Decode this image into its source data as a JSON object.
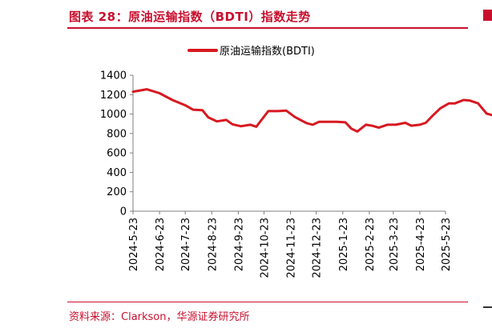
{
  "figure": {
    "title": "图表 28：原油运输指数（BDTI）指数走势",
    "source": "资料来源：Clarkson，华源证券研究所"
  },
  "colors": {
    "accent": "#c8102e",
    "series": "#d71920",
    "axis": "#7f7f7f"
  },
  "chart_data": {
    "type": "line",
    "title": "",
    "xlabel": "",
    "ylabel": "",
    "ylim": [
      0,
      1400
    ],
    "yticks": [
      0,
      200,
      400,
      600,
      800,
      1000,
      1200,
      1400
    ],
    "xtick_labels": [
      "2024-5-23",
      "2024-6-23",
      "2024-7-23",
      "2024-8-23",
      "2024-9-23",
      "2024-10-23",
      "2024-11-23",
      "2024-12-23",
      "2025-1-23",
      "2025-2-23",
      "2025-3-23",
      "2025-4-23",
      "2025-5-23"
    ],
    "legend_position": "top-center",
    "grid": false,
    "series": [
      {
        "name": "原油运输指数(BDTI)",
        "points": [
          [
            "2024-5-23",
            1230
          ],
          [
            "2024-6-8",
            1255
          ],
          [
            "2024-6-23",
            1215
          ],
          [
            "2024-7-8",
            1145
          ],
          [
            "2024-7-23",
            1090
          ],
          [
            "2024-8-1",
            1045
          ],
          [
            "2024-8-12",
            1040
          ],
          [
            "2024-8-19",
            965
          ],
          [
            "2024-8-29",
            925
          ],
          [
            "2024-9-9",
            940
          ],
          [
            "2024-9-16",
            895
          ],
          [
            "2024-9-26",
            875
          ],
          [
            "2024-10-7",
            890
          ],
          [
            "2024-10-14",
            870
          ],
          [
            "2024-10-28",
            1030
          ],
          [
            "2024-11-8",
            1030
          ],
          [
            "2024-11-18",
            1035
          ],
          [
            "2024-11-28",
            970
          ],
          [
            "2024-12-12",
            905
          ],
          [
            "2024-12-19",
            890
          ],
          [
            "2024-12-26",
            920
          ],
          [
            "2025-1-5",
            920
          ],
          [
            "2025-1-16",
            920
          ],
          [
            "2025-1-26",
            915
          ],
          [
            "2025-2-2",
            850
          ],
          [
            "2025-2-9",
            820
          ],
          [
            "2025-2-19",
            890
          ],
          [
            "2025-2-26",
            880
          ],
          [
            "2025-3-6",
            860
          ],
          [
            "2025-3-16",
            890
          ],
          [
            "2025-3-26",
            890
          ],
          [
            "2025-4-6",
            910
          ],
          [
            "2025-4-13",
            880
          ],
          [
            "2025-4-23",
            890
          ],
          [
            "2025-4-30",
            910
          ],
          [
            "2025-5-7",
            975
          ],
          [
            "2025-5-17",
            1060
          ],
          [
            "2025-5-27",
            1110
          ],
          [
            "2025-6-3",
            1110
          ],
          [
            "2025-6-13",
            1145
          ],
          [
            "2025-6-20",
            1140
          ],
          [
            "2025-6-30",
            1110
          ],
          [
            "2025-7-10",
            1005
          ],
          [
            "2025-7-20",
            980
          ],
          [
            "2025-7-27",
            975
          ]
        ]
      }
    ]
  }
}
